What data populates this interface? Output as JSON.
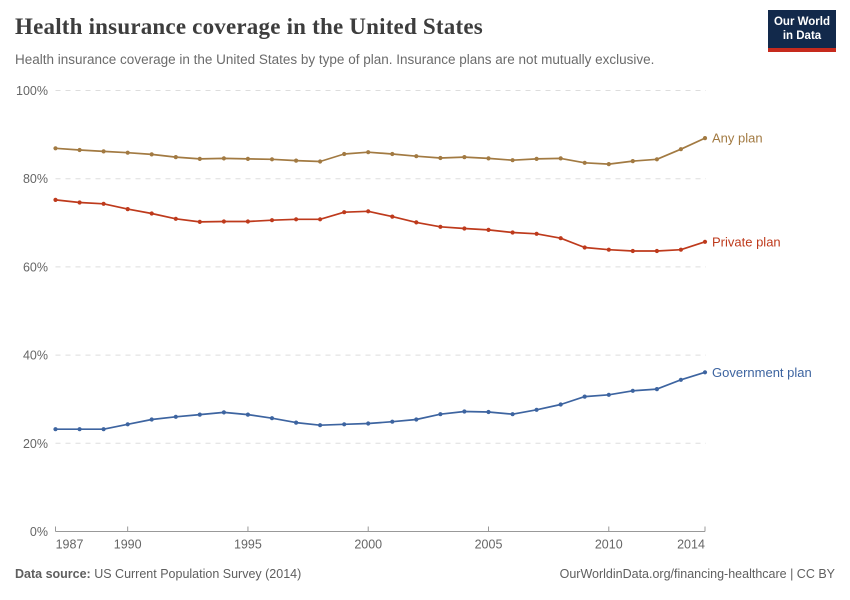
{
  "header": {
    "title": "Health insurance coverage in the United States",
    "subtitle": "Health insurance coverage in the United States by type of plan. Insurance plans are not mutually exclusive."
  },
  "logo": {
    "line1": "Our World",
    "line2": "in Data",
    "background_color": "#12294B",
    "bar_color": "#C62A1D"
  },
  "chart_data": {
    "type": "line",
    "title": "Health insurance coverage in the United States",
    "xlabel": "",
    "ylabel": "",
    "ylim": [
      0,
      100
    ],
    "yticks": [
      0,
      20,
      40,
      60,
      80,
      100
    ],
    "ytick_suffix": "%",
    "xticks": [
      1987,
      1990,
      1995,
      2000,
      2005,
      2010,
      2014
    ],
    "grid": "horizontal-dashed",
    "legend_position": "end-of-line",
    "x": [
      1987,
      1988,
      1989,
      1990,
      1991,
      1992,
      1993,
      1994,
      1995,
      1996,
      1997,
      1998,
      1999,
      2000,
      2001,
      2002,
      2003,
      2004,
      2005,
      2006,
      2007,
      2008,
      2009,
      2010,
      2011,
      2012,
      2013,
      2014
    ],
    "series": [
      {
        "name": "Any plan",
        "color": "#A27A42",
        "values": [
          86.9,
          86.5,
          86.2,
          85.9,
          85.5,
          84.9,
          84.5,
          84.6,
          84.5,
          84.4,
          84.1,
          83.9,
          85.6,
          86.0,
          85.6,
          85.1,
          84.7,
          84.9,
          84.6,
          84.2,
          84.5,
          84.6,
          83.6,
          83.3,
          84.0,
          84.4,
          86.7,
          89.2
        ]
      },
      {
        "name": "Private plan",
        "color": "#BE3A1C",
        "values": [
          75.2,
          74.6,
          74.3,
          73.1,
          72.1,
          70.9,
          70.2,
          70.3,
          70.3,
          70.6,
          70.8,
          70.8,
          72.4,
          72.6,
          71.4,
          70.1,
          69.1,
          68.7,
          68.4,
          67.8,
          67.5,
          66.5,
          64.4,
          63.9,
          63.6,
          63.6,
          63.9,
          65.7
        ]
      },
      {
        "name": "Government plan",
        "color": "#3D64A0",
        "values": [
          23.2,
          23.2,
          23.2,
          24.3,
          25.4,
          26.0,
          26.5,
          27.0,
          26.5,
          25.7,
          24.7,
          24.1,
          24.3,
          24.5,
          24.9,
          25.4,
          26.6,
          27.2,
          27.1,
          26.6,
          27.6,
          28.8,
          30.6,
          31.0,
          31.9,
          32.3,
          34.4,
          36.1
        ]
      }
    ],
    "axis_color": "#999999",
    "grid_color": "#dddddd",
    "tick_label_color": "#666666"
  },
  "footer": {
    "source_label": "Data source:",
    "source_value": " US Current Population Survey (2014)",
    "credit": "OurWorldinData.org/financing-healthcare | CC BY"
  }
}
